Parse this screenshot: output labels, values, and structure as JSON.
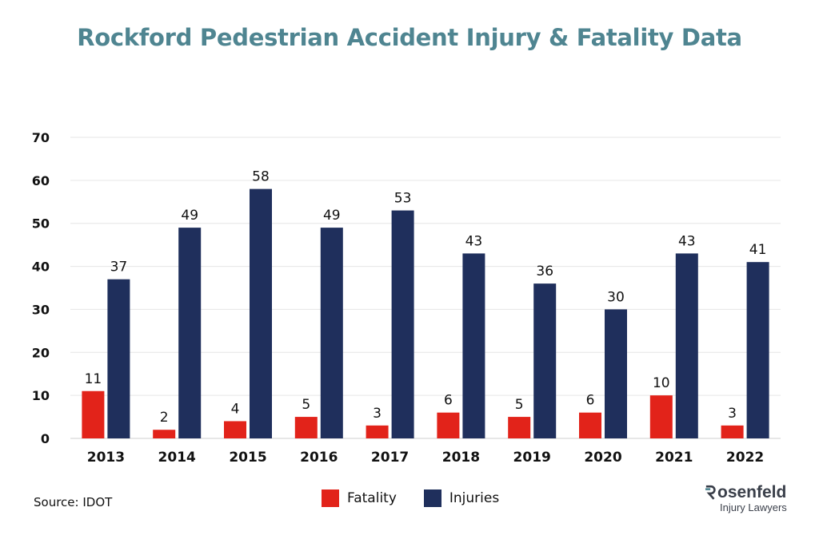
{
  "chart_data": {
    "type": "bar",
    "title": "Rockford Pedestrian Accident Injury & Fatality Data",
    "categories": [
      "2013",
      "2014",
      "2015",
      "2016",
      "2017",
      "2018",
      "2019",
      "2020",
      "2021",
      "2022"
    ],
    "series": [
      {
        "name": "Fatality",
        "color": "#e2231a",
        "values": [
          11,
          2,
          4,
          5,
          3,
          6,
          5,
          6,
          10,
          3
        ]
      },
      {
        "name": "Injuries",
        "color": "#1f2f5c",
        "values": [
          37,
          49,
          58,
          49,
          53,
          43,
          36,
          30,
          43,
          41
        ]
      }
    ],
    "ylim": [
      0,
      70
    ],
    "yticks": [
      0,
      10,
      20,
      30,
      40,
      50,
      60,
      70
    ],
    "grid": true,
    "legend_position": "bottom-center",
    "xlabel": "",
    "ylabel": ""
  },
  "source": "Source: IDOT",
  "brand": {
    "name": "Rosenfeld",
    "name_rest": "osenfeld",
    "subtitle": "Injury Lawyers",
    "accent": "#4f8591"
  }
}
